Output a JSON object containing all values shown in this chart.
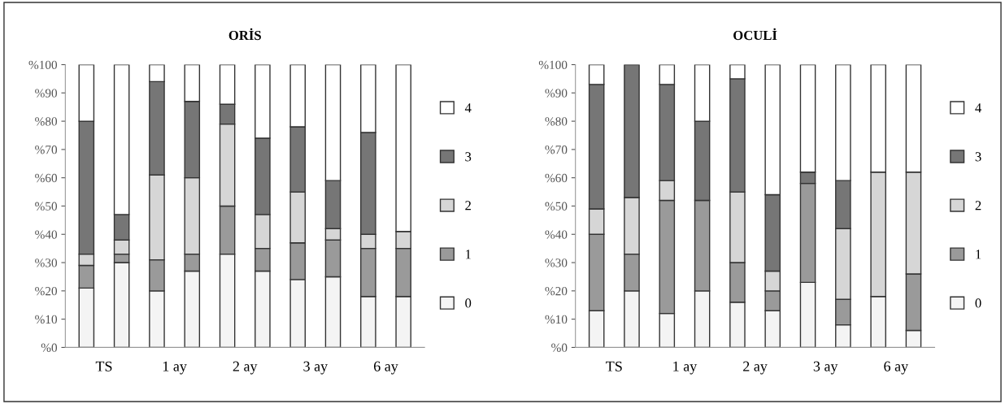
{
  "chart_data": [
    {
      "type": "bar",
      "title": "ORİS",
      "stacked": true,
      "legend": "right",
      "grid": false,
      "categories": [
        "TS",
        null,
        "1 ay",
        null,
        "2 ay",
        null,
        "3 ay",
        null,
        "6 ay",
        null
      ],
      "ylim": [
        0,
        100
      ],
      "yticks": [
        {
          "value": 0,
          "label": "%0"
        },
        {
          "value": 10,
          "label": "%10"
        },
        {
          "value": 20,
          "label": "%20"
        },
        {
          "value": 30,
          "label": "%30"
        },
        {
          "value": 40,
          "label": "%40"
        },
        {
          "value": 50,
          "label": "%50"
        },
        {
          "value": 60,
          "label": "%60"
        },
        {
          "value": 70,
          "label": "%70"
        },
        {
          "value": 80,
          "label": "%80"
        },
        {
          "value": 90,
          "label": "%90"
        },
        {
          "value": 100,
          "label": "%100"
        }
      ],
      "series": [
        {
          "name": "0",
          "color": "#f4f4f4",
          "values": [
            21,
            30,
            20,
            27,
            33,
            27,
            24,
            25,
            18,
            18
          ]
        },
        {
          "name": "1",
          "color": "#9a9a9a",
          "values": [
            8,
            3,
            11,
            6,
            17,
            8,
            13,
            13,
            17,
            17
          ]
        },
        {
          "name": "2",
          "color": "#d6d6d6",
          "values": [
            4,
            5,
            30,
            27,
            29,
            12,
            18,
            4,
            5,
            6
          ]
        },
        {
          "name": "3",
          "color": "#767676",
          "values": [
            47,
            9,
            33,
            27,
            7,
            27,
            23,
            17,
            36,
            0
          ]
        },
        {
          "name": "4",
          "color": "#ffffff",
          "values": [
            20,
            53,
            6,
            13,
            14,
            26,
            22,
            41,
            24,
            59
          ]
        }
      ]
    },
    {
      "type": "bar",
      "title": "OCULİ",
      "stacked": true,
      "legend": "right",
      "grid": false,
      "categories": [
        "TS",
        null,
        "1 ay",
        null,
        "2 ay",
        null,
        "3 ay",
        null,
        "6 ay",
        null
      ],
      "ylim": [
        0,
        100
      ],
      "yticks": [
        {
          "value": 0,
          "label": "%0"
        },
        {
          "value": 10,
          "label": "%10"
        },
        {
          "value": 20,
          "label": "%20"
        },
        {
          "value": 30,
          "label": "%30"
        },
        {
          "value": 40,
          "label": "%40"
        },
        {
          "value": 50,
          "label": "%50"
        },
        {
          "value": 60,
          "label": "%60"
        },
        {
          "value": 70,
          "label": "%70"
        },
        {
          "value": 80,
          "label": "%80"
        },
        {
          "value": 90,
          "label": "%90"
        },
        {
          "value": 100,
          "label": "%100"
        }
      ],
      "series": [
        {
          "name": "0",
          "color": "#f4f4f4",
          "values": [
            13,
            20,
            12,
            20,
            16,
            13,
            23,
            8,
            18,
            6
          ]
        },
        {
          "name": "1",
          "color": "#9a9a9a",
          "values": [
            27,
            13,
            40,
            32,
            14,
            7,
            35,
            9,
            0,
            20
          ]
        },
        {
          "name": "2",
          "color": "#d6d6d6",
          "values": [
            9,
            20,
            7,
            0,
            25,
            7,
            0,
            25,
            44,
            36
          ]
        },
        {
          "name": "3",
          "color": "#767676",
          "values": [
            44,
            47,
            34,
            28,
            40,
            27,
            4,
            17,
            0,
            0
          ]
        },
        {
          "name": "4",
          "color": "#ffffff",
          "values": [
            7,
            0,
            7,
            20,
            5,
            46,
            38,
            41,
            38,
            38
          ]
        }
      ]
    }
  ]
}
